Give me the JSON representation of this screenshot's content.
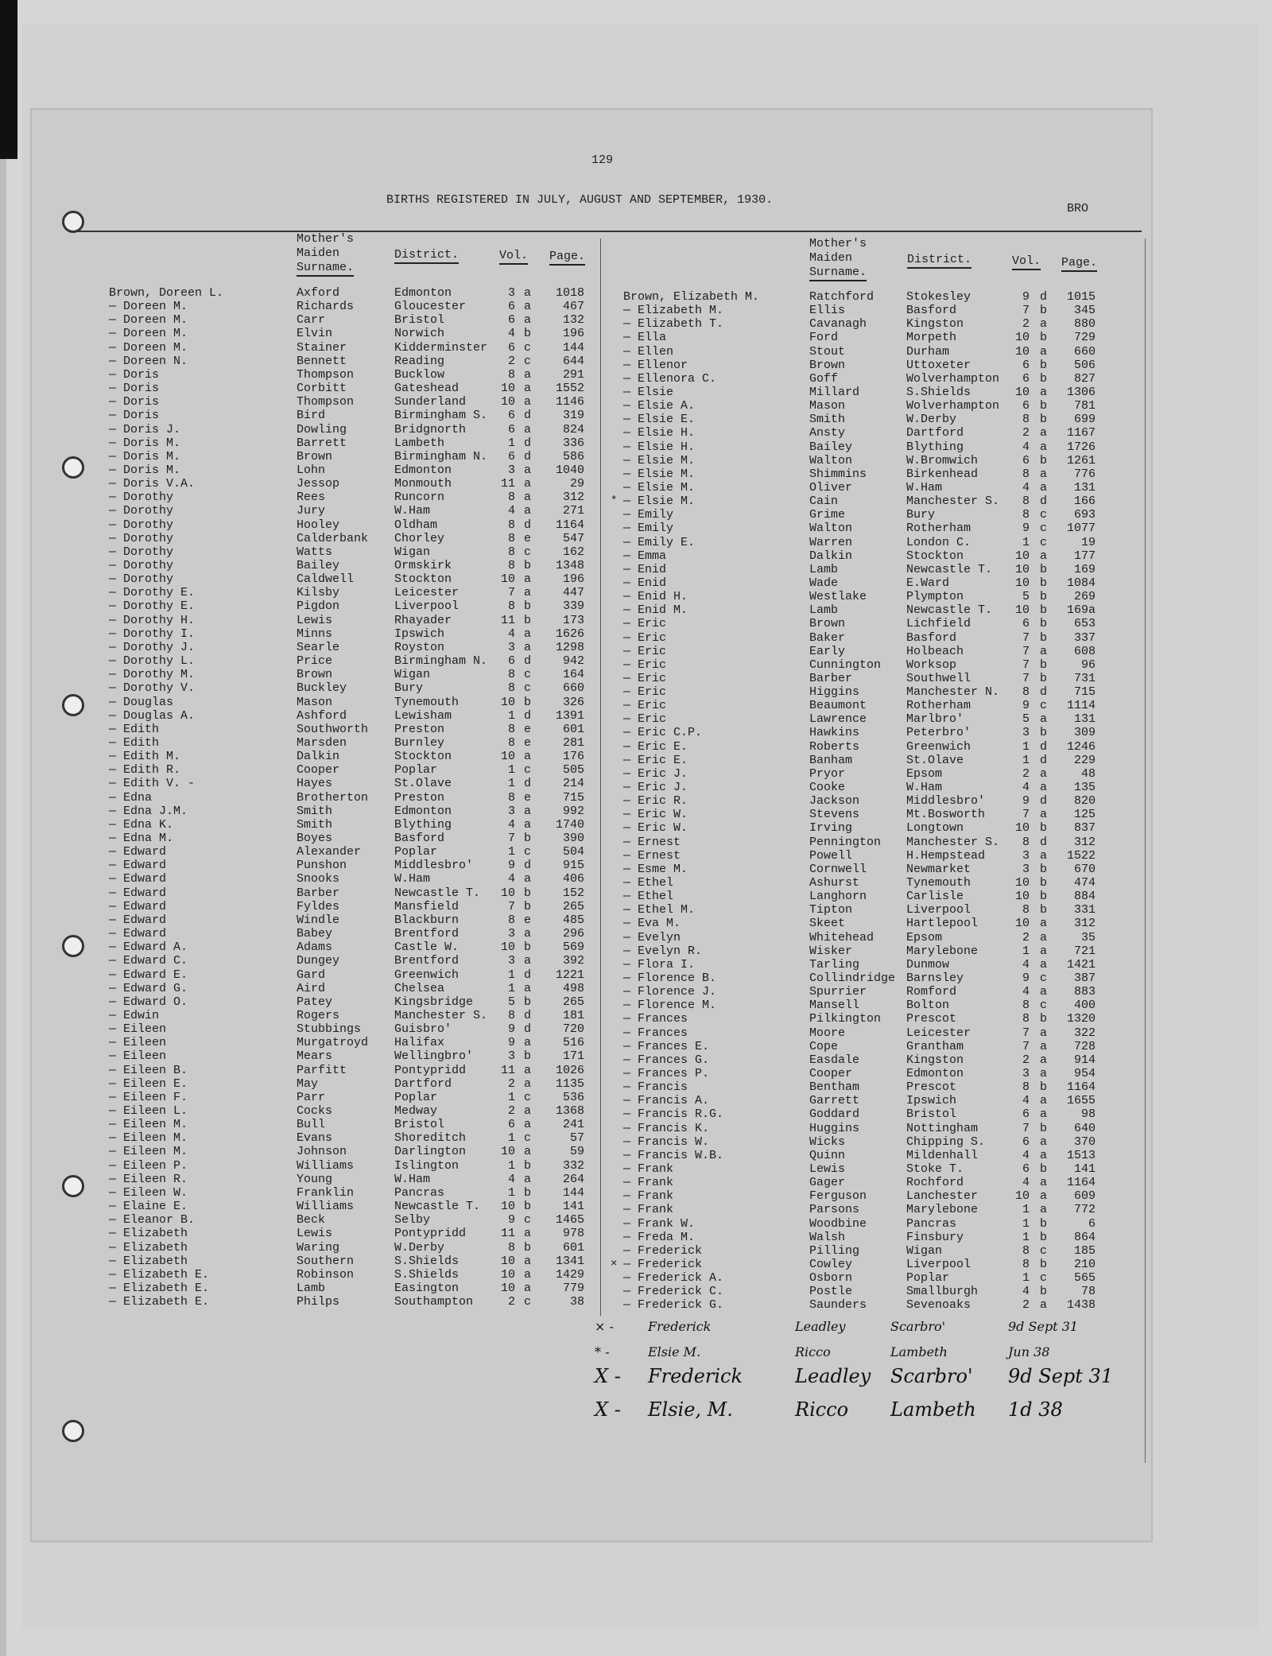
{
  "page_number": "129",
  "title": "BIRTHS REGISTERED IN JULY, AUGUST AND SEPTEMBER, 1930.",
  "running_head": "BRO",
  "headers": {
    "mother_line1": "Mother's",
    "mother_line2": "Maiden",
    "mother_line3": "Surname.",
    "district": "District.",
    "vol": "Vol.",
    "page": "Page."
  },
  "left_rows": [
    [
      "Brown, Doreen L.",
      "Axford",
      "Edmonton",
      "3",
      "a",
      "1018"
    ],
    [
      "— Doreen M.",
      "Richards",
      "Gloucester",
      "6",
      "a",
      "467"
    ],
    [
      "— Doreen M.",
      "Carr",
      "Bristol",
      "6",
      "a",
      "132"
    ],
    [
      "— Doreen M.",
      "Elvin",
      "Norwich",
      "4",
      "b",
      "196"
    ],
    [
      "— Doreen M.",
      "Stainer",
      "Kidderminster",
      "6",
      "c",
      "144"
    ],
    [
      "— Doreen N.",
      "Bennett",
      "Reading",
      "2",
      "c",
      "644"
    ],
    [
      "— Doris",
      "Thompson",
      "Bucklow",
      "8",
      "a",
      "291"
    ],
    [
      "— Doris",
      "Corbitt",
      "Gateshead",
      "10",
      "a",
      "1552"
    ],
    [
      "— Doris",
      "Thompson",
      "Sunderland",
      "10",
      "a",
      "1146"
    ],
    [
      "— Doris",
      "Bird",
      "Birmingham S.",
      "6",
      "d",
      "319"
    ],
    [
      "— Doris J.",
      "Dowling",
      "Bridgnorth",
      "6",
      "a",
      "824"
    ],
    [
      "— Doris M.",
      "Barrett",
      "Lambeth",
      "1",
      "d",
      "336"
    ],
    [
      "— Doris M.",
      "Brown",
      "Birmingham N.",
      "6",
      "d",
      "586"
    ],
    [
      "— Doris M.",
      "Lohn",
      "Edmonton",
      "3",
      "a",
      "1040"
    ],
    [
      "— Doris V.A.",
      "Jessop",
      "Monmouth",
      "11",
      "a",
      "29"
    ],
    [
      "— Dorothy",
      "Rees",
      "Runcorn",
      "8",
      "a",
      "312"
    ],
    [
      "— Dorothy",
      "Jury",
      "W.Ham",
      "4",
      "a",
      "271"
    ],
    [
      "— Dorothy",
      "Hooley",
      "Oldham",
      "8",
      "d",
      "1164"
    ],
    [
      "— Dorothy",
      "Calderbank",
      "Chorley",
      "8",
      "e",
      "547"
    ],
    [
      "— Dorothy",
      "Watts",
      "Wigan",
      "8",
      "c",
      "162"
    ],
    [
      "— Dorothy",
      "Bailey",
      "Ormskirk",
      "8",
      "b",
      "1348"
    ],
    [
      "— Dorothy",
      "Caldwell",
      "Stockton",
      "10",
      "a",
      "196"
    ],
    [
      "— Dorothy E.",
      "Kilsby",
      "Leicester",
      "7",
      "a",
      "447"
    ],
    [
      "— Dorothy E.",
      "Pigdon",
      "Liverpool",
      "8",
      "b",
      "339"
    ],
    [
      "— Dorothy H.",
      "Lewis",
      "Rhayader",
      "11",
      "b",
      "173"
    ],
    [
      "— Dorothy I.",
      "Minns",
      "Ipswich",
      "4",
      "a",
      "1626"
    ],
    [
      "— Dorothy J.",
      "Searle",
      "Royston",
      "3",
      "a",
      "1298"
    ],
    [
      "— Dorothy L.",
      "Price",
      "Birmingham N.",
      "6",
      "d",
      "942"
    ],
    [
      "— Dorothy M.",
      "Brown",
      "Wigan",
      "8",
      "c",
      "164"
    ],
    [
      "— Dorothy V.",
      "Buckley",
      "Bury",
      "8",
      "c",
      "660"
    ],
    [
      "— Douglas",
      "Mason",
      "Tynemouth",
      "10",
      "b",
      "326"
    ],
    [
      "— Douglas A.",
      "Ashford",
      "Lewisham",
      "1",
      "d",
      "1391"
    ],
    [
      "— Edith",
      "Southworth",
      "Preston",
      "8",
      "e",
      "601"
    ],
    [
      "— Edith",
      "Marsden",
      "Burnley",
      "8",
      "e",
      "281"
    ],
    [
      "— Edith M.",
      "Dalkin",
      "Stockton",
      "10",
      "a",
      "176"
    ],
    [
      "— Edith R.",
      "Cooper",
      "Poplar",
      "1",
      "c",
      "505"
    ],
    [
      "— Edith V. -",
      "Hayes",
      "St.Olave",
      "1",
      "d",
      "214"
    ],
    [
      "— Edna",
      "Brotherton",
      "Preston",
      "8",
      "e",
      "715"
    ],
    [
      "— Edna J.M.",
      "Smith",
      "Edmonton",
      "3",
      "a",
      "992"
    ],
    [
      "— Edna K.",
      "Smith",
      "Blything",
      "4",
      "a",
      "1740"
    ],
    [
      "— Edna M.",
      "Boyes",
      "Basford",
      "7",
      "b",
      "390"
    ],
    [
      "— Edward",
      "Alexander",
      "Poplar",
      "1",
      "c",
      "504"
    ],
    [
      "— Edward",
      "Punshon",
      "Middlesbro'",
      "9",
      "d",
      "915"
    ],
    [
      "— Edward",
      "Snooks",
      "W.Ham",
      "4",
      "a",
      "406"
    ],
    [
      "— Edward",
      "Barber",
      "Newcastle T.",
      "10",
      "b",
      "152"
    ],
    [
      "— Edward",
      "Fyldes",
      "Mansfield",
      "7",
      "b",
      "265"
    ],
    [
      "— Edward",
      "Windle",
      "Blackburn",
      "8",
      "e",
      "485"
    ],
    [
      "— Edward",
      "Babey",
      "Brentford",
      "3",
      "a",
      "296"
    ],
    [
      "— Edward A.",
      "Adams",
      "Castle W.",
      "10",
      "b",
      "569"
    ],
    [
      "— Edward C.",
      "Dungey",
      "Brentford",
      "3",
      "a",
      "392"
    ],
    [
      "— Edward E.",
      "Gard",
      "Greenwich",
      "1",
      "d",
      "1221"
    ],
    [
      "— Edward G.",
      "Aird",
      "Chelsea",
      "1",
      "a",
      "498"
    ],
    [
      "— Edward O.",
      "Patey",
      "Kingsbridge",
      "5",
      "b",
      "265"
    ],
    [
      "— Edwin",
      "Rogers",
      "Manchester S.",
      "8",
      "d",
      "181"
    ],
    [
      "— Eileen",
      "Stubbings",
      "Guisbro'",
      "9",
      "d",
      "720"
    ],
    [
      "— Eileen",
      "Murgatroyd",
      "Halifax",
      "9",
      "a",
      "516"
    ],
    [
      "— Eileen",
      "Mears",
      "Wellingbro'",
      "3",
      "b",
      "171"
    ],
    [
      "— Eileen B.",
      "Parfitt",
      "Pontypridd",
      "11",
      "a",
      "1026"
    ],
    [
      "— Eileen E.",
      "May",
      "Dartford",
      "2",
      "a",
      "1135"
    ],
    [
      "— Eileen F.",
      "Parr",
      "Poplar",
      "1",
      "c",
      "536"
    ],
    [
      "— Eileen L.",
      "Cocks",
      "Medway",
      "2",
      "a",
      "1368"
    ],
    [
      "— Eileen M.",
      "Bull",
      "Bristol",
      "6",
      "a",
      "241"
    ],
    [
      "— Eileen M.",
      "Evans",
      "Shoreditch",
      "1",
      "c",
      "57"
    ],
    [
      "— Eileen M.",
      "Johnson",
      "Darlington",
      "10",
      "a",
      "59"
    ],
    [
      "— Eileen P.",
      "Williams",
      "Islington",
      "1",
      "b",
      "332"
    ],
    [
      "— Eileen R.",
      "Young",
      "W.Ham",
      "4",
      "a",
      "264"
    ],
    [
      "— Eileen W.",
      "Franklin",
      "Pancras",
      "1",
      "b",
      "144"
    ],
    [
      "— Elaine E.",
      "Williams",
      "Newcastle T.",
      "10",
      "b",
      "141"
    ],
    [
      "— Eleanor B.",
      "Beck",
      "Selby",
      "9",
      "c",
      "1465"
    ],
    [
      "— Elizabeth",
      "Lewis",
      "Pontypridd",
      "11",
      "a",
      "978"
    ],
    [
      "— Elizabeth",
      "Waring",
      "W.Derby",
      "8",
      "b",
      "601"
    ],
    [
      "— Elizabeth",
      "Southern",
      "S.Shields",
      "10",
      "a",
      "1341"
    ],
    [
      "— Elizabeth E.",
      "Robinson",
      "S.Shields",
      "10",
      "a",
      "1429"
    ],
    [
      "— Elizabeth E.",
      "Lamb",
      "Easington",
      "10",
      "a",
      "779"
    ],
    [
      "— Elizabeth E.",
      "Philps",
      "Southampton",
      "2",
      "c",
      "38"
    ]
  ],
  "right_rows": [
    [
      "Brown, Elizabeth M.",
      "Ratchford",
      "Stokesley",
      "9",
      "d",
      "1015"
    ],
    [
      "— Elizabeth M.",
      "Ellis",
      "Basford",
      "7",
      "b",
      "345"
    ],
    [
      "— Elizabeth T.",
      "Cavanagh",
      "Kingston",
      "2",
      "a",
      "880"
    ],
    [
      "— Ella",
      "Ford",
      "Morpeth",
      "10",
      "b",
      "729"
    ],
    [
      "— Ellen",
      "Stout",
      "Durham",
      "10",
      "a",
      "660"
    ],
    [
      "— Ellenor",
      "Brown",
      "Uttoxeter",
      "6",
      "b",
      "506"
    ],
    [
      "— Ellenora C.",
      "Goff",
      "Wolverhampton",
      "6",
      "b",
      "827"
    ],
    [
      "— Elsie",
      "Millard",
      "S.Shields",
      "10",
      "a",
      "1306"
    ],
    [
      "— Elsie A.",
      "Mason",
      "Wolverhampton",
      "6",
      "b",
      "781"
    ],
    [
      "— Elsie E.",
      "Smith",
      "W.Derby",
      "8",
      "b",
      "699"
    ],
    [
      "— Elsie H.",
      "Ansty",
      "Dartford",
      "2",
      "a",
      "1167"
    ],
    [
      "— Elsie H.",
      "Bailey",
      "Blything",
      "4",
      "a",
      "1726"
    ],
    [
      "— Elsie M.",
      "Walton",
      "W.Bromwich",
      "6",
      "b",
      "1261"
    ],
    [
      "— Elsie M.",
      "Shimmins",
      "Birkenhead",
      "8",
      "a",
      "776"
    ],
    [
      "— Elsie M.",
      "Oliver",
      "W.Ham",
      "4",
      "a",
      "131"
    ],
    [
      "— Elsie M.",
      "Cain",
      "Manchester S.",
      "8",
      "d",
      "166"
    ],
    [
      "— Emily",
      "Grime",
      "Bury",
      "8",
      "c",
      "693"
    ],
    [
      "— Emily",
      "Walton",
      "Rotherham",
      "9",
      "c",
      "1077"
    ],
    [
      "— Emily E.",
      "Warren",
      "London C.",
      "1",
      "c",
      "19"
    ],
    [
      "— Emma",
      "Dalkin",
      "Stockton",
      "10",
      "a",
      "177"
    ],
    [
      "— Enid",
      "Lamb",
      "Newcastle T.",
      "10",
      "b",
      "169"
    ],
    [
      "— Enid",
      "Wade",
      "E.Ward",
      "10",
      "b",
      "1084"
    ],
    [
      "— Enid H.",
      "Westlake",
      "Plympton",
      "5",
      "b",
      "269"
    ],
    [
      "— Enid M.",
      "Lamb",
      "Newcastle T.",
      "10",
      "b",
      "169a"
    ],
    [
      "— Eric",
      "Brown",
      "Lichfield",
      "6",
      "b",
      "653"
    ],
    [
      "— Eric",
      "Baker",
      "Basford",
      "7",
      "b",
      "337"
    ],
    [
      "— Eric",
      "Early",
      "Holbeach",
      "7",
      "a",
      "608"
    ],
    [
      "— Eric",
      "Cunnington",
      "Worksop",
      "7",
      "b",
      "96"
    ],
    [
      "— Eric",
      "Barber",
      "Southwell",
      "7",
      "b",
      "731"
    ],
    [
      "— Eric",
      "Higgins",
      "Manchester N.",
      "8",
      "d",
      "715"
    ],
    [
      "— Eric",
      "Beaumont",
      "Rotherham",
      "9",
      "c",
      "1114"
    ],
    [
      "— Eric",
      "Lawrence",
      "Marlbro'",
      "5",
      "a",
      "131"
    ],
    [
      "— Eric C.P.",
      "Hawkins",
      "Peterbro'",
      "3",
      "b",
      "309"
    ],
    [
      "— Eric E.",
      "Roberts",
      "Greenwich",
      "1",
      "d",
      "1246"
    ],
    [
      "— Eric E.",
      "Banham",
      "St.Olave",
      "1",
      "d",
      "229"
    ],
    [
      "— Eric J.",
      "Pryor",
      "Epsom",
      "2",
      "a",
      "48"
    ],
    [
      "— Eric J.",
      "Cooke",
      "W.Ham",
      "4",
      "a",
      "135"
    ],
    [
      "— Eric R.",
      "Jackson",
      "Middlesbro'",
      "9",
      "d",
      "820"
    ],
    [
      "— Eric W.",
      "Stevens",
      "Mt.Bosworth",
      "7",
      "a",
      "125"
    ],
    [
      "— Eric W.",
      "Irving",
      "Longtown",
      "10",
      "b",
      "837"
    ],
    [
      "— Ernest",
      "Pennington",
      "Manchester S.",
      "8",
      "d",
      "312"
    ],
    [
      "— Ernest",
      "Powell",
      "H.Hempstead",
      "3",
      "a",
      "1522"
    ],
    [
      "— Esme M.",
      "Cornwell",
      "Newmarket",
      "3",
      "b",
      "670"
    ],
    [
      "— Ethel",
      "Ashurst",
      "Tynemouth",
      "10",
      "b",
      "474"
    ],
    [
      "— Ethel",
      "Langhorn",
      "Carlisle",
      "10",
      "b",
      "884"
    ],
    [
      "— Ethel M.",
      "Tipton",
      "Liverpool",
      "8",
      "b",
      "331"
    ],
    [
      "— Eva M.",
      "Skeet",
      "Hartlepool",
      "10",
      "a",
      "312"
    ],
    [
      "— Evelyn",
      "Whitehead",
      "Epsom",
      "2",
      "a",
      "35"
    ],
    [
      "— Evelyn R.",
      "Wisker",
      "Marylebone",
      "1",
      "a",
      "721"
    ],
    [
      "— Flora I.",
      "Tarling",
      "Dunmow",
      "4",
      "a",
      "1421"
    ],
    [
      "— Florence B.",
      "Collindridge",
      "Barnsley",
      "9",
      "c",
      "387"
    ],
    [
      "— Florence J.",
      "Spurrier",
      "Romford",
      "4",
      "a",
      "883"
    ],
    [
      "— Florence M.",
      "Mansell",
      "Bolton",
      "8",
      "c",
      "400"
    ],
    [
      "— Frances",
      "Pilkington",
      "Prescot",
      "8",
      "b",
      "1320"
    ],
    [
      "— Frances",
      "Moore",
      "Leicester",
      "7",
      "a",
      "322"
    ],
    [
      "— Frances E.",
      "Cope",
      "Grantham",
      "7",
      "a",
      "728"
    ],
    [
      "— Frances G.",
      "Easdale",
      "Kingston",
      "2",
      "a",
      "914"
    ],
    [
      "— Frances P.",
      "Cooper",
      "Edmonton",
      "3",
      "a",
      "954"
    ],
    [
      "— Francis",
      "Bentham",
      "Prescot",
      "8",
      "b",
      "1164"
    ],
    [
      "— Francis A.",
      "Garrett",
      "Ipswich",
      "4",
      "a",
      "1655"
    ],
    [
      "— Francis R.G.",
      "Goddard",
      "Bristol",
      "6",
      "a",
      "98"
    ],
    [
      "— Francis K.",
      "Huggins",
      "Nottingham",
      "7",
      "b",
      "640"
    ],
    [
      "— Francis W.",
      "Wicks",
      "Chipping S.",
      "6",
      "a",
      "370"
    ],
    [
      "— Francis W.B.",
      "Quinn",
      "Mildenhall",
      "4",
      "a",
      "1513"
    ],
    [
      "— Frank",
      "Lewis",
      "Stoke T.",
      "6",
      "b",
      "141"
    ],
    [
      "— Frank",
      "Gager",
      "Rochford",
      "4",
      "a",
      "1164"
    ],
    [
      "— Frank",
      "Ferguson",
      "Lanchester",
      "10",
      "a",
      "609"
    ],
    [
      "— Frank",
      "Parsons",
      "Marylebone",
      "1",
      "a",
      "772"
    ],
    [
      "— Frank W.",
      "Woodbine",
      "Pancras",
      "1",
      "b",
      "6"
    ],
    [
      "— Freda M.",
      "Walsh",
      "Finsbury",
      "1",
      "b",
      "864"
    ],
    [
      "— Frederick",
      "Pilling",
      "Wigan",
      "8",
      "c",
      "185"
    ],
    [
      "— Frederick",
      "Cowley",
      "Liverpool",
      "8",
      "b",
      "210"
    ],
    [
      "— Frederick A.",
      "Osborn",
      "Poplar",
      "1",
      "c",
      "565"
    ],
    [
      "— Frederick C.",
      "Postle",
      "Smallburgh",
      "4",
      "b",
      "78"
    ],
    [
      "— Frederick G.",
      "Saunders",
      "Sevenoaks",
      "2",
      "a",
      "1438"
    ]
  ],
  "right_marks": {
    "15": "*",
    "71": "×"
  },
  "handwritten": [
    {
      "prefix": "× -",
      "name": "Frederick",
      "surname": "Leadley",
      "district": "Scarbro'",
      "ref": "9d Sept 31",
      "struck": true
    },
    {
      "prefix": "* -",
      "name": "Elsie M.",
      "surname": "Ricco",
      "district": "Lambeth",
      "ref": "Jun 38",
      "struck": true
    },
    {
      "prefix": "X -",
      "name": "Frederick",
      "surname": "Leadley",
      "district": "Scarbro'",
      "ref": "9d Sept 31",
      "struck": false
    },
    {
      "prefix": "X -",
      "name": "Elsie, M.",
      "surname": "Ricco",
      "district": "Lambeth",
      "ref": "1d 38",
      "struck": false
    }
  ]
}
